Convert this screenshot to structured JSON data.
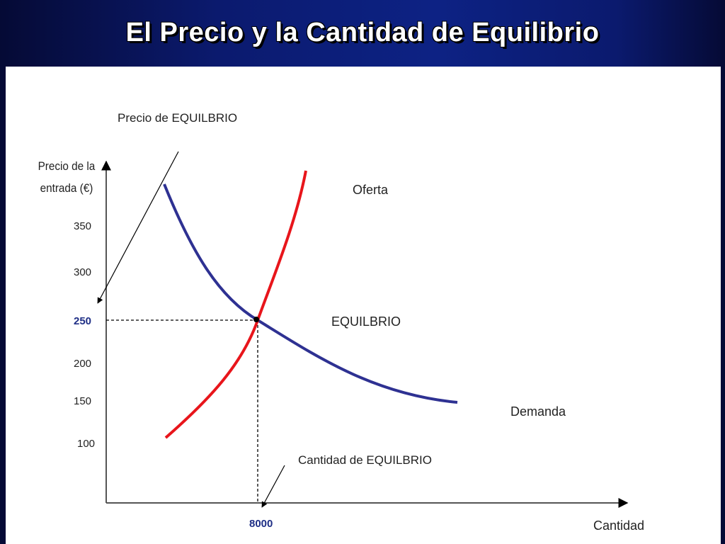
{
  "slide": {
    "title": "El Precio y la Cantidad de Equilibrio"
  },
  "diagram": {
    "equilibrium_price_label": "Precio  de EQUILBRIO",
    "y_axis_label_line1": "Precio de la",
    "y_axis_label_line2": "entrada (€)",
    "x_axis_label": "Cantidad",
    "supply_label": "Oferta",
    "demand_label": "Demanda",
    "equilibrium_label": "EQUILBRIO",
    "equilibrium_quantity_label": "Cantidad de EQUILBRIO",
    "y_ticks": [
      "350",
      "300",
      "250",
      "200",
      "150",
      "100"
    ],
    "equilibrium_price_tick": "250",
    "equilibrium_quantity_tick": "8000",
    "supply_color": "#e8151b",
    "demand_color": "#2e3192",
    "highlight_tick_color": "#1f2f86"
  }
}
